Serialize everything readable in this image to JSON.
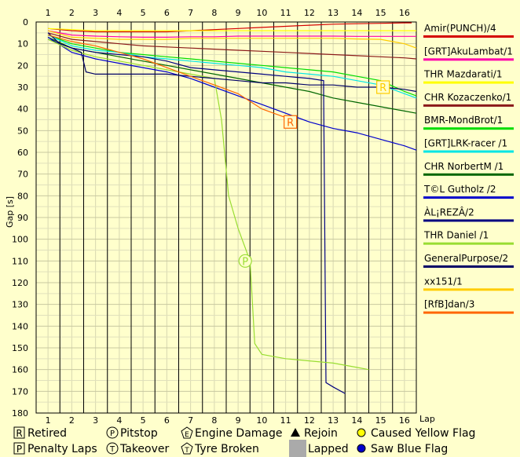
{
  "chart_data": {
    "type": "line",
    "xlabel": "Lap",
    "ylabel": "Gap [s]",
    "x_ticks": [
      "1",
      "2",
      "3",
      "4",
      "5",
      "6",
      "7",
      "8",
      "9",
      "10",
      "11",
      "12",
      "13",
      "14",
      "15",
      "16"
    ],
    "y_ticks": [
      "0",
      "10",
      "20",
      "30",
      "40",
      "50",
      "60",
      "70",
      "80",
      "90",
      "100",
      "110",
      "120",
      "130",
      "140",
      "150",
      "160",
      "170",
      "180"
    ],
    "xlim": [
      0.5,
      16.5
    ],
    "ylim": [
      0,
      180
    ],
    "y_inverted": true,
    "grid": true,
    "series": [
      {
        "name": "Amir(PUNCH)/4",
        "color": "#d40000",
        "x": [
          1,
          2,
          3,
          4,
          5,
          6,
          7,
          8,
          9,
          10,
          11,
          12,
          13,
          14,
          15,
          16,
          16.3
        ],
        "y": [
          3,
          4,
          4.5,
          4.5,
          4.5,
          4.5,
          4,
          3.5,
          3,
          2.5,
          2,
          1.5,
          1,
          0.8,
          0.6,
          0.4,
          0.4
        ]
      },
      {
        "name": "[GRT]AkuLambat/1",
        "color": "#ff00aa",
        "x": [
          1,
          2,
          3,
          4,
          5,
          6,
          7,
          8,
          9,
          10,
          11,
          12,
          13,
          14,
          15,
          16,
          16.5
        ],
        "y": [
          4,
          6,
          6.5,
          6.8,
          7,
          7,
          6.8,
          6.8,
          6.5,
          6.5,
          6.5,
          6.5,
          6.5,
          6.6,
          6.6,
          6.6,
          6.6
        ]
      },
      {
        "name": "THR Mazdarati/1",
        "color": "#ffff00",
        "x": [
          1,
          2,
          3,
          4,
          5,
          6,
          7,
          8,
          9,
          10,
          11,
          12,
          13,
          14,
          15,
          16,
          16.5
        ],
        "y": [
          3,
          3.5,
          4,
          4,
          4,
          4,
          4,
          4,
          4,
          4,
          4,
          4,
          4,
          4,
          4,
          4,
          4
        ]
      },
      {
        "name": "CHR Kozaczenko/1",
        "color": "#8b1a1a",
        "x": [
          1,
          2,
          3,
          4,
          5,
          6,
          7,
          8,
          9,
          10,
          11,
          12,
          13,
          14,
          15,
          16,
          16.5
        ],
        "y": [
          5,
          8,
          9,
          10,
          11,
          11.5,
          12,
          12.5,
          13,
          13.5,
          14,
          14.5,
          15,
          15.5,
          16,
          16.5,
          17
        ]
      },
      {
        "name": "BMR-MondBrot/1",
        "color": "#00dd00",
        "x": [
          1,
          2,
          3,
          4,
          5,
          6,
          7,
          8,
          9,
          10,
          11,
          12,
          13,
          14,
          15,
          16,
          16.5
        ],
        "y": [
          6,
          10,
          12,
          14,
          15,
          16,
          17,
          18,
          19,
          20,
          21,
          22,
          23,
          25,
          27,
          32,
          34
        ]
      },
      {
        "name": "[GRT]LRK-racer /1",
        "color": "#00e5e5",
        "x": [
          1,
          2,
          3,
          4,
          5,
          6,
          7,
          8,
          9,
          10,
          11,
          12,
          13,
          14,
          15,
          16,
          16.5
        ],
        "y": [
          6,
          11,
          13,
          14,
          16,
          17,
          18,
          19,
          20,
          21,
          23,
          24,
          25,
          27,
          29,
          33,
          35
        ]
      },
      {
        "name": "CHR NorbertM /1",
        "color": "#006600",
        "x": [
          1,
          2,
          3,
          4,
          5,
          6,
          7,
          8,
          9,
          10,
          11,
          12,
          13,
          14,
          15,
          16,
          16.5
        ],
        "y": [
          7,
          12,
          14,
          16,
          18,
          20,
          22,
          24,
          26,
          28,
          30,
          32,
          35,
          37,
          39,
          41,
          42
        ]
      },
      {
        "name": "T©L Gutholz /2",
        "color": "#0000cc",
        "x": [
          1,
          2,
          3,
          4,
          5,
          6,
          7,
          8,
          9,
          10,
          11,
          12,
          13,
          14,
          15,
          16,
          16.5
        ],
        "y": [
          7,
          14,
          17,
          19,
          21,
          23,
          26,
          30,
          34,
          38,
          42,
          46,
          49,
          51,
          54,
          57,
          59
        ]
      },
      {
        "name": "ÀL¡REZÂ/2",
        "color": "#000080",
        "x": [
          1,
          2,
          3,
          4,
          5,
          6,
          7,
          8,
          9,
          10,
          11,
          12,
          12.6,
          12.6,
          12.7,
          13,
          13.5
        ],
        "y": [
          8,
          12,
          14,
          15,
          16,
          18,
          21,
          22,
          23,
          24,
          25,
          26,
          27,
          32,
          166,
          168,
          171
        ]
      },
      {
        "name": "THR Daniel /1",
        "color": "#99dd33",
        "x": [
          1,
          2,
          3,
          4,
          5,
          6,
          7,
          8,
          8.3,
          8.6,
          9,
          9.5,
          9.7,
          10,
          11,
          12,
          13,
          14,
          14.5
        ],
        "y": [
          8,
          13,
          16,
          18,
          20,
          22,
          24,
          26,
          45,
          80,
          95,
          110,
          148,
          153,
          155,
          156,
          157,
          159,
          160
        ]
      },
      {
        "name": "GeneralPurpose/2",
        "color": "#000066",
        "x": [
          1,
          1.5,
          2,
          2.4,
          2.6,
          3,
          4,
          5,
          6,
          7,
          8,
          9,
          10,
          11,
          12,
          13,
          14,
          15,
          16,
          16.5
        ],
        "y": [
          5,
          10,
          12,
          14,
          23,
          24,
          24,
          24,
          24,
          25,
          26,
          27,
          28,
          28,
          29,
          29,
          30,
          30,
          31,
          32
        ]
      },
      {
        "name": "xx151/1",
        "color": "#ffcc00",
        "x": [
          1,
          2,
          3,
          4,
          5,
          6,
          7,
          8,
          9,
          10,
          11,
          12,
          13,
          14,
          15,
          16,
          16.5
        ],
        "y": [
          4,
          7,
          7.5,
          8,
          8,
          8,
          7.5,
          7.5,
          7.5,
          7.5,
          7.5,
          7.5,
          7.5,
          7.8,
          8,
          10,
          12
        ]
      },
      {
        "name": "[RfB]dan/3",
        "color": "#ff6600",
        "x": [
          1,
          2,
          3,
          4,
          5,
          6,
          7,
          8,
          9,
          10,
          11,
          11.4
        ],
        "y": [
          6,
          9,
          11,
          14,
          17,
          21,
          25,
          29,
          33,
          40,
          44,
          46
        ]
      }
    ],
    "markers": [
      {
        "symbol": "R",
        "x": 11.2,
        "y": 46,
        "color": "#ff6600"
      },
      {
        "symbol": "R",
        "x": 15.1,
        "y": 30,
        "color": "#ffcc00"
      },
      {
        "symbol": "P",
        "x": 9.3,
        "y": 110,
        "color": "#99dd33"
      }
    ],
    "key": [
      {
        "icon": "boxed-letter",
        "symbol": "R",
        "label": "Retired"
      },
      {
        "icon": "circled-letter",
        "symbol": "P",
        "label": "Pitstop"
      },
      {
        "icon": "pentagon-letter",
        "symbol": "E",
        "label": "Engine Damage"
      },
      {
        "icon": "triangle",
        "symbol": "",
        "label": "Rejoin"
      },
      {
        "icon": "yellow-dot",
        "symbol": "",
        "label": "Caused Yellow Flag"
      },
      {
        "icon": "boxed-letter",
        "symbol": "P",
        "label": "Penalty Laps"
      },
      {
        "icon": "circled-letter",
        "symbol": "T",
        "label": "Takeover"
      },
      {
        "icon": "pentagon-letter",
        "symbol": "T",
        "label": "Tyre Broken"
      },
      {
        "icon": "gray-square",
        "symbol": "",
        "label": "Lapped"
      },
      {
        "icon": "blue-dot",
        "symbol": "",
        "label": "Saw Blue Flag"
      }
    ]
  }
}
